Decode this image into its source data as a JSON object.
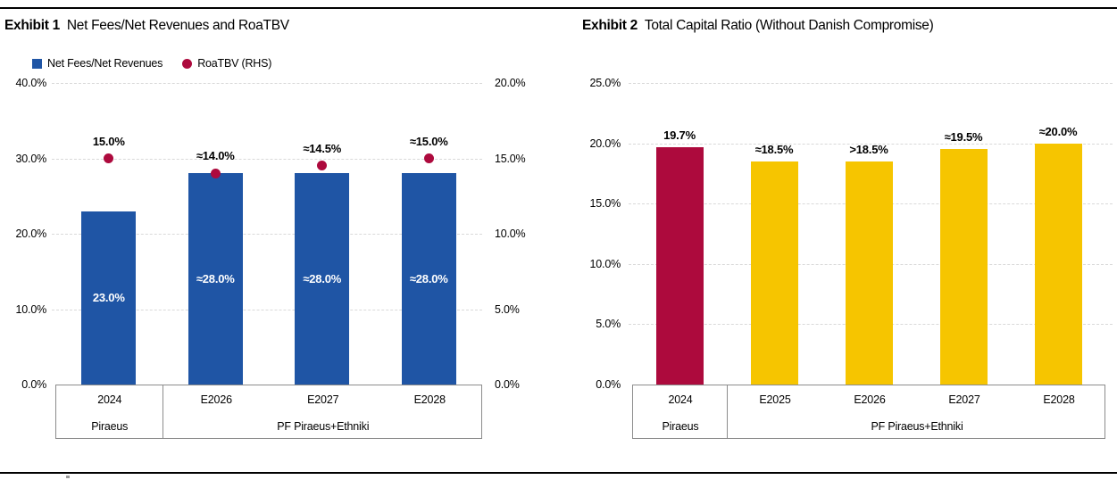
{
  "exhibits": [
    {
      "label": "Exhibit 1",
      "title": "Net Fees/Net Revenues and RoaTBV",
      "legend": [
        {
          "marker": "square",
          "label": "Net Fees/Net Revenues",
          "color": "#1F55A5"
        },
        {
          "marker": "circle",
          "label": "RoaTBV (RHS)",
          "color": "#AD0A3D"
        }
      ]
    },
    {
      "label": "Exhibit 2",
      "title": "Total Capital Ratio (Without Danish Compromise)"
    }
  ],
  "chart_data": [
    {
      "type": "bar",
      "title": "Net Fees/Net Revenues and RoaTBV",
      "categories": [
        "2024",
        "E2026",
        "E2027",
        "E2028"
      ],
      "group_labels": [
        {
          "label": "Piraeus",
          "span": 1
        },
        {
          "label": "PF Piraeus+Ethniki",
          "span": 3
        }
      ],
      "left_axis": {
        "min": 0,
        "max": 40,
        "ticks": [
          "40.0%",
          "30.0%",
          "20.0%",
          "10.0%",
          "0.0%"
        ]
      },
      "right_axis": {
        "min": 0,
        "max": 20,
        "ticks": [
          "20.0%",
          "15.0%",
          "10.0%",
          "5.0%",
          "0.0%"
        ]
      },
      "grid": true,
      "legend_position": "top-left",
      "series": [
        {
          "name": "Net Fees/Net Revenues",
          "type": "bar",
          "axis": "left",
          "color": "#1F55A5",
          "values": [
            23.0,
            28.0,
            28.0,
            28.0
          ],
          "labels": [
            "23.0%",
            "≈28.0%",
            "≈28.0%",
            "≈28.0%"
          ]
        },
        {
          "name": "RoaTBV (RHS)",
          "type": "scatter",
          "axis": "right",
          "color": "#AD0A3D",
          "values": [
            15.0,
            14.0,
            14.5,
            15.0
          ],
          "labels": [
            "15.0%",
            "≈14.0%",
            "≈14.5%",
            "≈15.0%"
          ]
        }
      ]
    },
    {
      "type": "bar",
      "title": "Total Capital Ratio (Without Danish Compromise)",
      "categories": [
        "2024",
        "E2025",
        "E2026",
        "E2027",
        "E2028"
      ],
      "group_labels": [
        {
          "label": "Piraeus",
          "span": 1
        },
        {
          "label": "PF Piraeus+Ethniki",
          "span": 4
        }
      ],
      "left_axis": {
        "min": 0,
        "max": 25,
        "ticks": [
          "25.0%",
          "20.0%",
          "15.0%",
          "10.0%",
          "5.0%",
          "0.0%"
        ]
      },
      "grid": true,
      "series": [
        {
          "name": "Total Capital Ratio",
          "type": "bar",
          "axis": "left",
          "colors": [
            "#AD0A3D",
            "#F6C500",
            "#F6C500",
            "#F6C500",
            "#F6C500"
          ],
          "values": [
            19.7,
            18.5,
            18.5,
            19.5,
            20.0
          ],
          "labels": [
            "19.7%",
            "≈18.5%",
            ">18.5%",
            "≈19.5%",
            "≈20.0%"
          ]
        }
      ]
    }
  ],
  "colors": {
    "bar_blue": "#1F55A5",
    "accent_red": "#AD0A3D",
    "bar_yellow": "#F6C500",
    "gridline": "#D9D9D9",
    "axis_box_border": "#8C8C8C",
    "rule": "#000000",
    "bar_inner_label": "#FFFFFF"
  }
}
